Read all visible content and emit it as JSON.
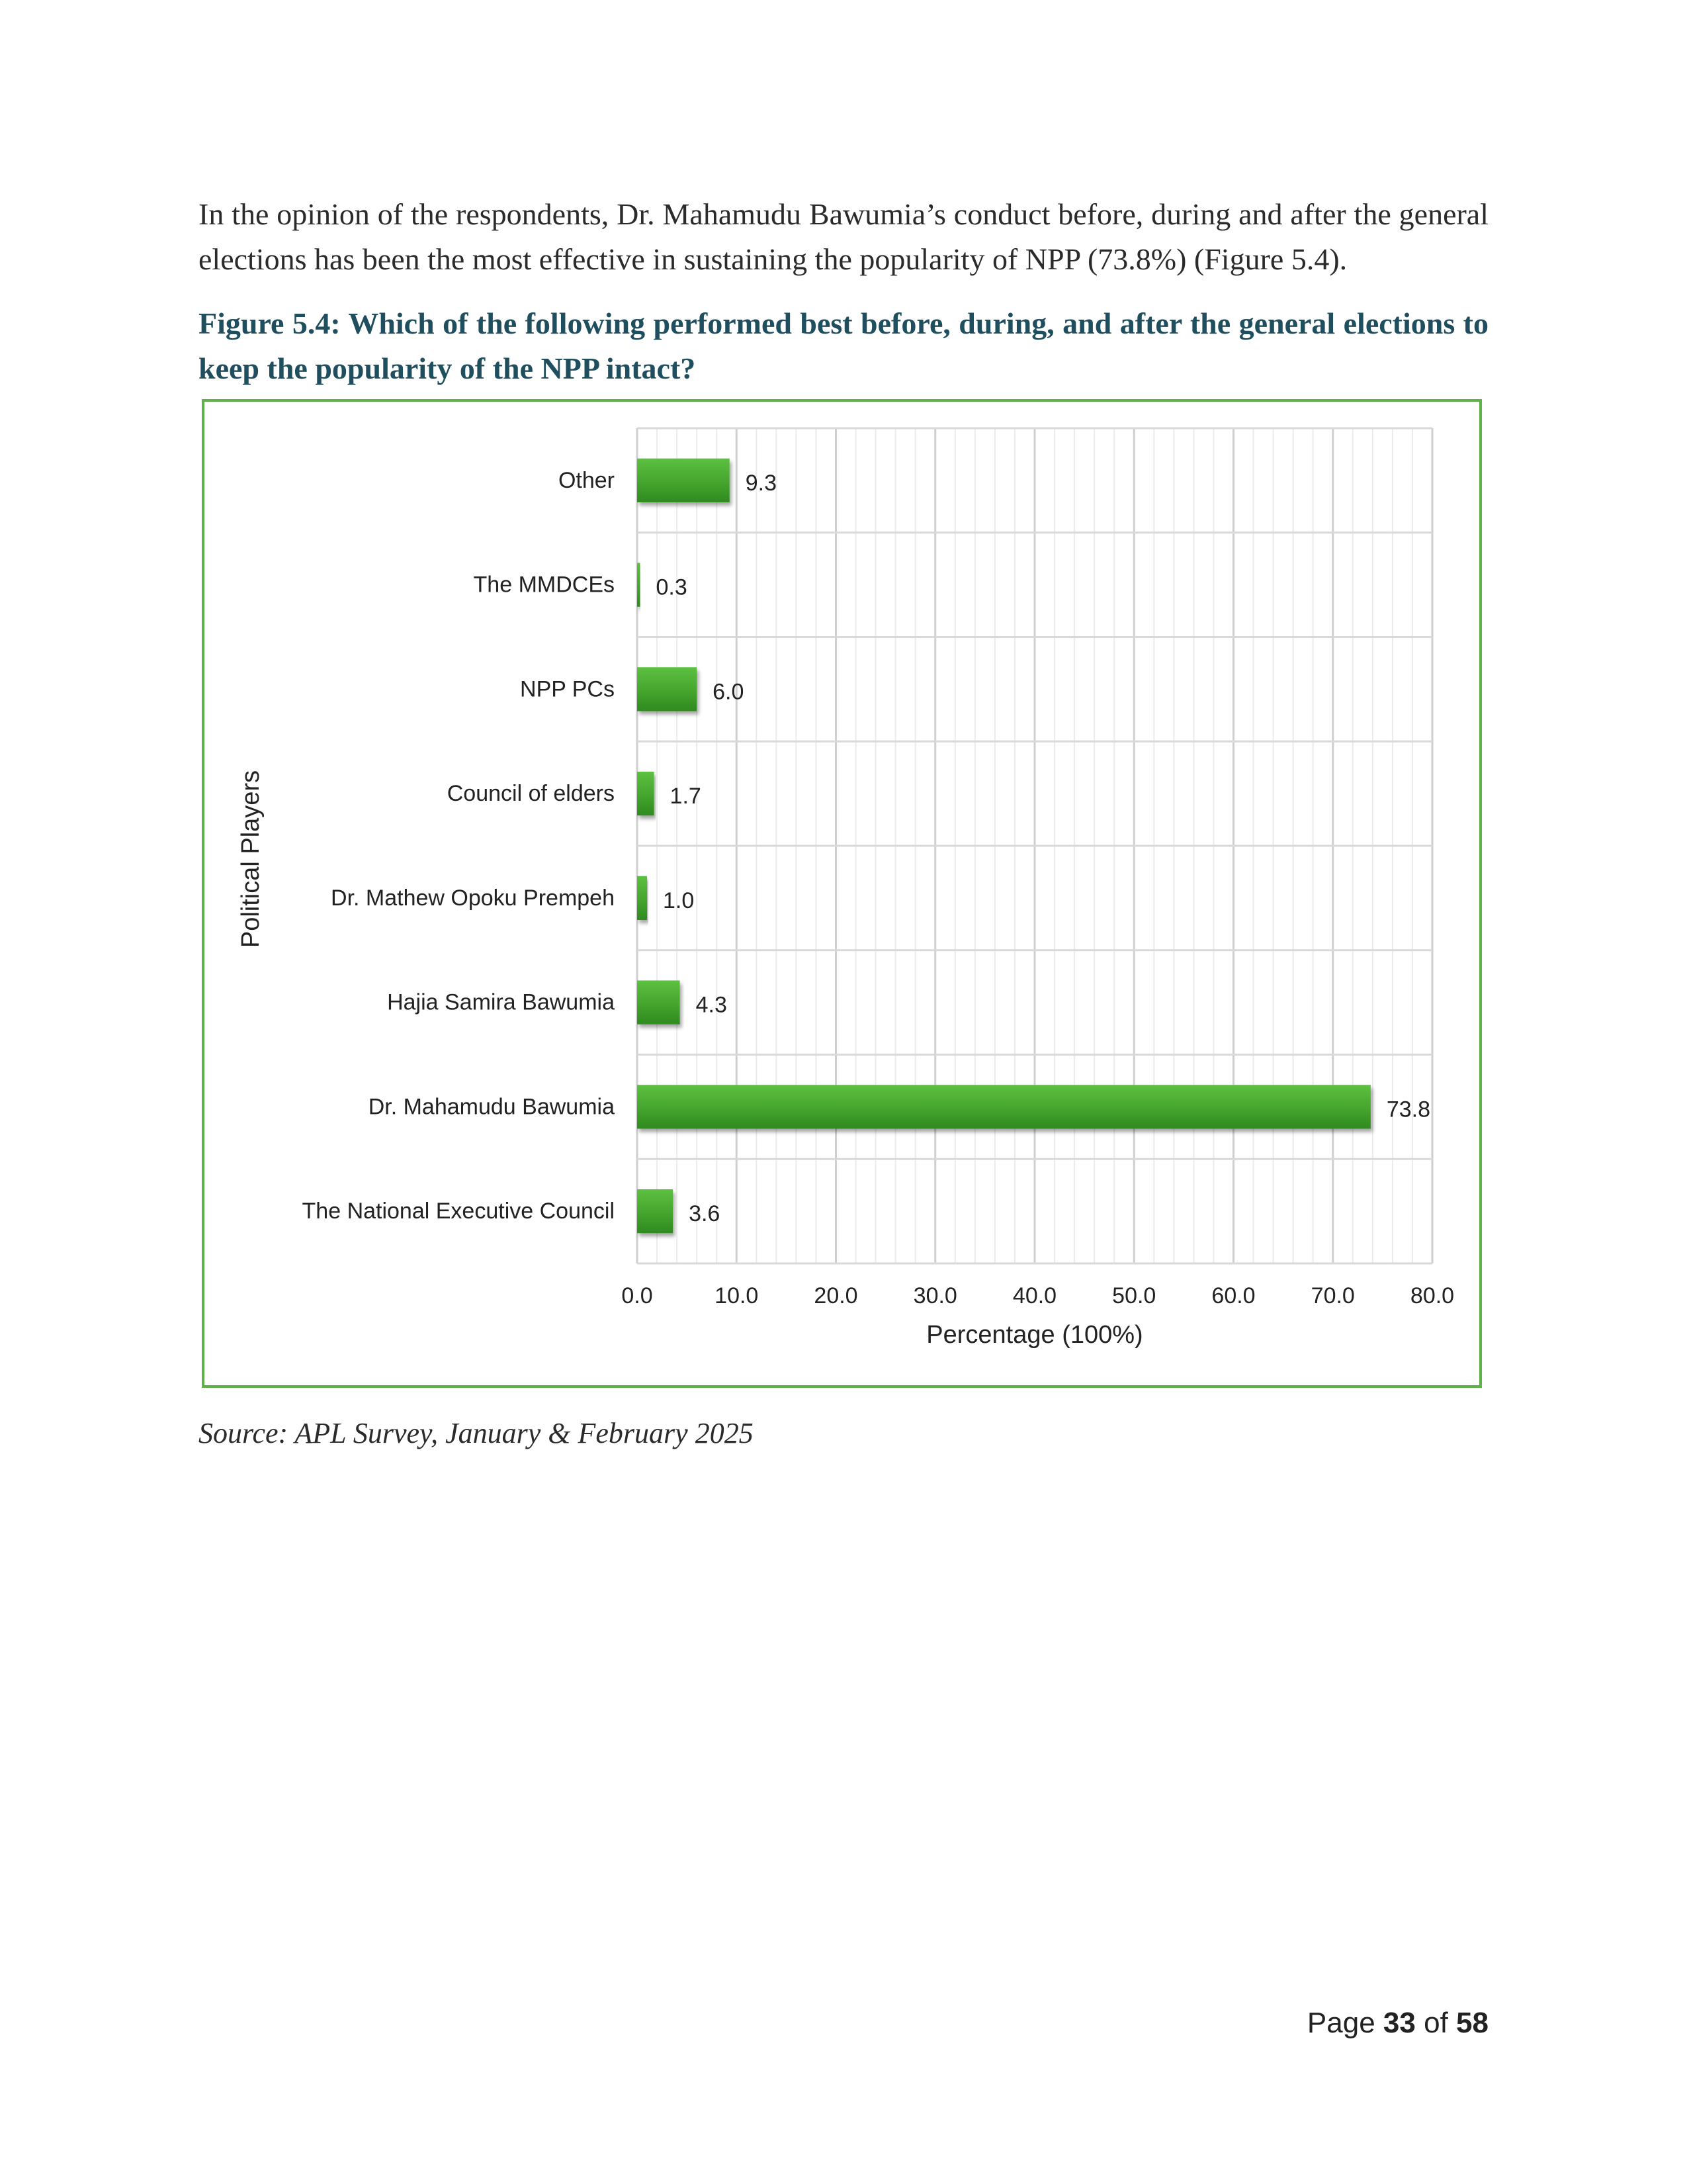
{
  "document": {
    "paragraph": "In the opinion of the respondents, Dr. Mahamudu Bawumia’s conduct before, during and after the general elections has been the most effective in sustaining the popularity of NPP (73.8%) (Figure 5.4).",
    "figure_caption": "Figure 5.4: Which of the following performed best before, during, and after the general elections to keep the popularity of the NPP intact?",
    "source": "Source: APL Survey, January & February 2025",
    "page": {
      "prefix": "Page",
      "current": "33",
      "middle": "of",
      "total": "58"
    }
  },
  "colors": {
    "bar": "#4caf34",
    "frame": "#5fb14a",
    "caption": "#1f4e5f",
    "grid": "#d9d9d9"
  },
  "chart_data": {
    "type": "bar",
    "orientation": "horizontal",
    "categories": [
      "Other",
      "The MMDCEs",
      "NPP PCs",
      "Council of elders",
      "Dr. Mathew Opoku Prempeh",
      "Hajia Samira Bawumia",
      "Dr. Mahamudu Bawumia",
      "The National Executive Council"
    ],
    "values": [
      9.3,
      0.3,
      6.0,
      1.7,
      1.0,
      4.3,
      73.8,
      3.6
    ],
    "value_labels": [
      "9.3",
      "0.3",
      "6.0",
      "1.7",
      "1.0",
      "4.3",
      "73.8",
      "3.6"
    ],
    "xlabel": "Percentage (100%)",
    "ylabel": "Political Players",
    "xlim": [
      0,
      80
    ],
    "x_ticks": [
      "0.0",
      "10.0",
      "20.0",
      "30.0",
      "40.0",
      "50.0",
      "60.0",
      "70.0",
      "80.0"
    ],
    "grid": true
  }
}
